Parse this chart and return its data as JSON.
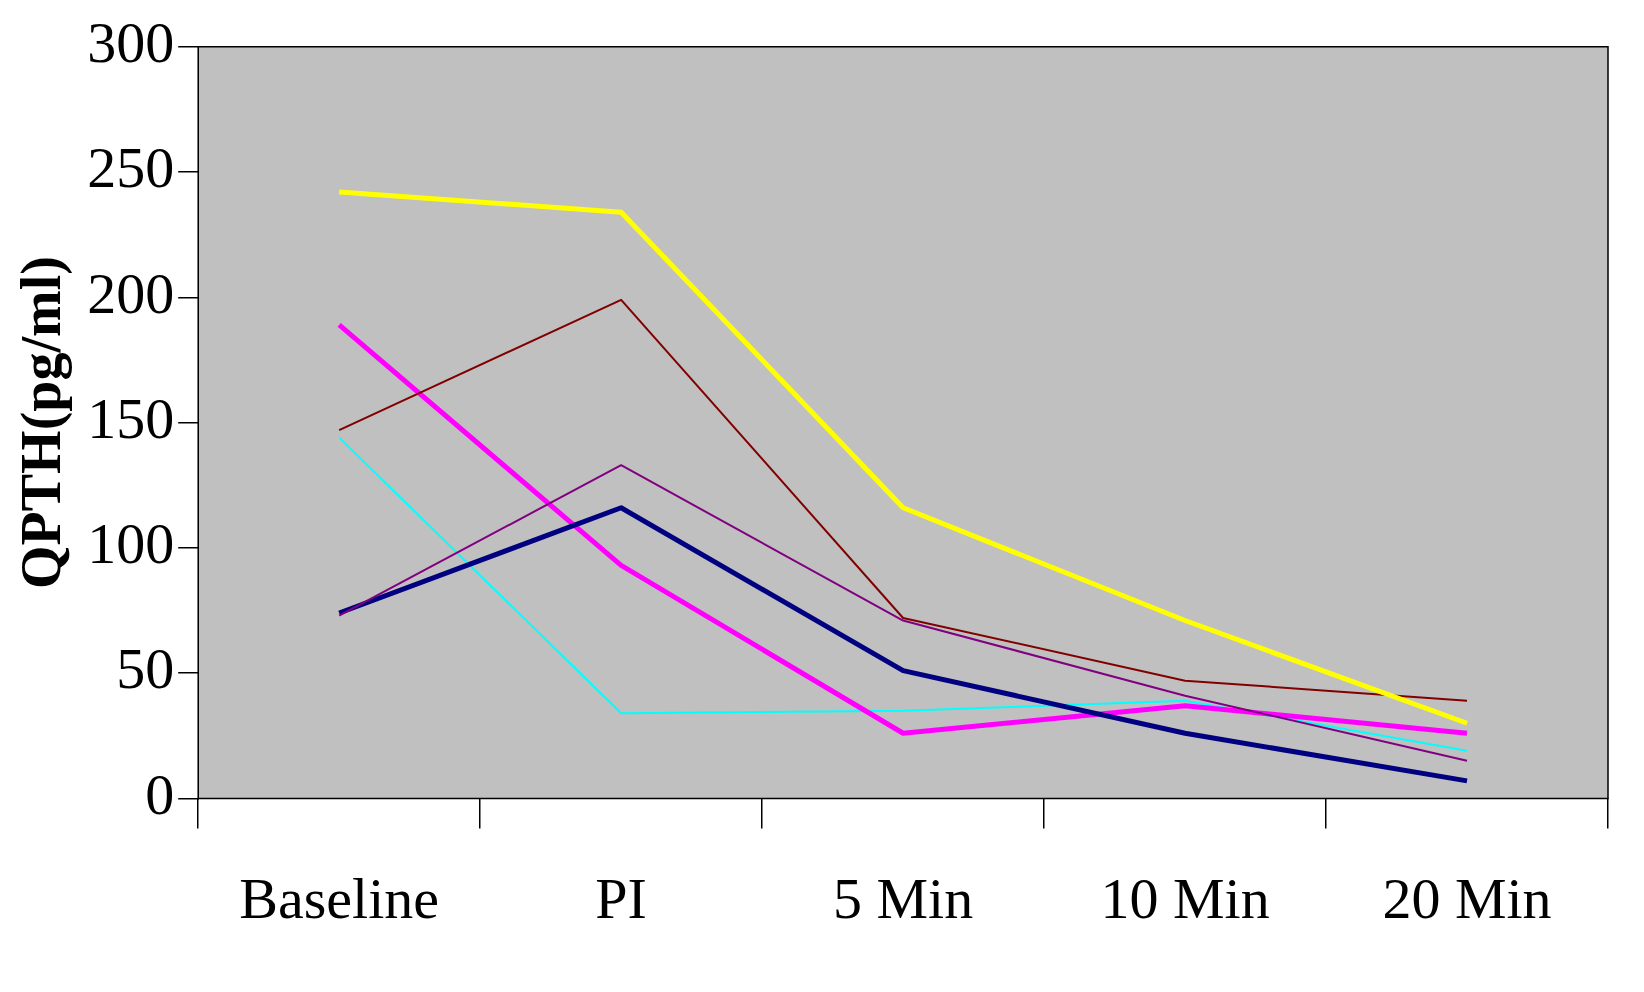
{
  "chart_data": {
    "type": "line",
    "ylabel": "QPTH(pg/ml)",
    "categories": [
      "Baseline",
      "PI",
      "5 Min",
      "10 Min",
      "20 Min"
    ],
    "ylim": [
      0,
      300
    ],
    "yticks": [
      0,
      50,
      100,
      150,
      200,
      250,
      300
    ],
    "grid": false,
    "legend": false,
    "marker": "none",
    "line_style": "solid",
    "series": [
      {
        "color": "#ffff00",
        "values": [
          242,
          234,
          116,
          71,
          30
        ]
      },
      {
        "color": "#800000",
        "values": [
          147,
          199,
          72,
          47,
          39
        ]
      },
      {
        "color": "#800080",
        "values": [
          73,
          133,
          71,
          41,
          15
        ]
      },
      {
        "color": "#000080",
        "values": [
          74,
          116,
          51,
          26,
          7
        ]
      },
      {
        "color": "#ff00ff",
        "values": [
          189,
          93,
          26,
          37,
          26
        ]
      },
      {
        "color": "#00ffff",
        "values": [
          144,
          34,
          35,
          39,
          19
        ]
      }
    ]
  }
}
